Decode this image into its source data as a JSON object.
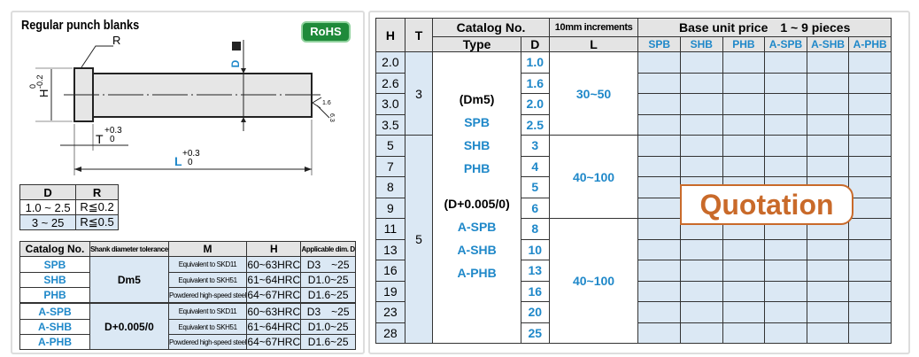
{
  "left": {
    "title": "Regular punch blanks",
    "rohs": "RoHS",
    "drawing": {
      "r": "R",
      "d": "D",
      "h": "H",
      "h_tol_upper": "0",
      "h_tol_lower": "-0.2",
      "t": "T",
      "t_tol_upper": "+0.3",
      "t_tol_lower": "0",
      "l": "L",
      "l_tol_upper": "+0.3",
      "l_tol_lower": "0",
      "finish": "1.6",
      "finish2": "6.3"
    },
    "dr_table": {
      "headers": [
        "D",
        "R"
      ],
      "rows": [
        [
          "1.0 ~ 2.5",
          "R≦0.2"
        ],
        [
          "3 ~ 25",
          "R≦0.5"
        ]
      ]
    },
    "spec_table": {
      "headers": [
        "Catalog No.",
        "Shank diameter tolerance",
        "M",
        "H",
        "Applicable dim. D"
      ],
      "tol1": "Dm5",
      "tol2": "D+0.005/0",
      "rows": [
        [
          "SPB",
          "Equivalent to SKD11",
          "60~63HRC",
          "D3　~25"
        ],
        [
          "SHB",
          "Equivalent to SKH51",
          "61~64HRC",
          "D1.0~25"
        ],
        [
          "PHB",
          "Powdered high-speed steel",
          "64~67HRC",
          "D1.6~25"
        ],
        [
          "A-SPB",
          "Equivalent to SKD11",
          "60~63HRC",
          "D3　~25"
        ],
        [
          "A-SHB",
          "Equivalent to SKH51",
          "61~64HRC",
          "D1.0~25"
        ],
        [
          "A-PHB",
          "Powdered high-speed steel",
          "64~67HRC",
          "D1.6~25"
        ]
      ]
    }
  },
  "right": {
    "headers": {
      "h": "H",
      "t": "T",
      "catalog": "Catalog No.",
      "type": "Type",
      "d": "D",
      "increments": "10mm increments",
      "l": "L",
      "price": "Base unit price　1 ~ 9 pieces",
      "types": [
        "SPB",
        "SHB",
        "PHB",
        "A-SPB",
        "A-SHB",
        "A-PHB"
      ]
    },
    "h_values": [
      "2.0",
      "2.6",
      "3.0",
      "3.5",
      "5",
      "7",
      "8",
      "9",
      "11",
      "13",
      "16",
      "19",
      "23",
      "28"
    ],
    "d_values": [
      "1.0",
      "1.6",
      "2.0",
      "2.5",
      "3",
      "4",
      "5",
      "6",
      "8",
      "10",
      "13",
      "16",
      "20",
      "25"
    ],
    "t_values": [
      "3",
      "5"
    ],
    "l_values": [
      "30~50",
      "40~100",
      "40~100"
    ],
    "type_text": {
      "tol1": "(Dm5)",
      "a": "SPB",
      "b": "SHB",
      "c": "PHB",
      "tol2": "(D+0.005/0)",
      "d": "A-SPB",
      "e": "A-SHB",
      "f": "A-PHB"
    },
    "quotation": "Quotation"
  },
  "colors": {
    "accent": "#1f88c9",
    "cell_blue": "#dbe8f4",
    "quote": "#c96a2a",
    "rohs": "#1f8a3a"
  }
}
